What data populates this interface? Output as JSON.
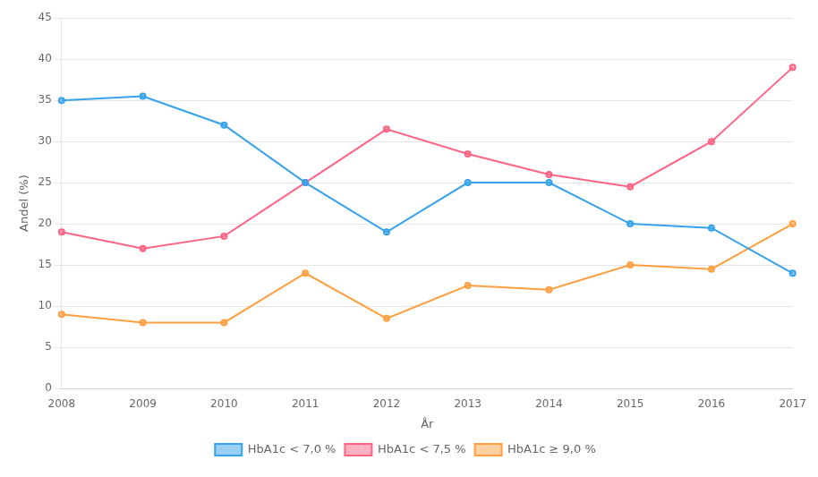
{
  "chart_data": {
    "type": "line",
    "xlabel": "År",
    "ylabel": "Andel (%)",
    "x": [
      2008,
      2009,
      2010,
      2011,
      2012,
      2013,
      2014,
      2015,
      2016,
      2017
    ],
    "series": [
      {
        "name": "HbA1c < 7,0 %",
        "values": [
          35,
          35.5,
          32,
          25,
          19,
          25,
          25,
          20,
          19.5,
          14
        ]
      },
      {
        "name": "HbA1c < 7,5 %",
        "values": [
          19,
          17,
          18.5,
          25,
          31.5,
          28.5,
          26,
          24.5,
          30,
          39
        ]
      },
      {
        "name": "HbA1c ≥ 9,0 %",
        "values": [
          9,
          8,
          8,
          14,
          8.5,
          12.5,
          12,
          15,
          14.5,
          20
        ]
      }
    ],
    "xlim": [
      2008,
      2017
    ],
    "xticks": [
      2008,
      2009,
      2010,
      2011,
      2012,
      2013,
      2014,
      2015,
      2016,
      2017
    ],
    "ylim": [
      0,
      45
    ],
    "yticks": [
      0,
      5,
      10,
      15,
      20,
      25,
      30,
      35,
      40,
      45
    ],
    "grid": true,
    "legend": "bottom",
    "marker": "circle"
  }
}
